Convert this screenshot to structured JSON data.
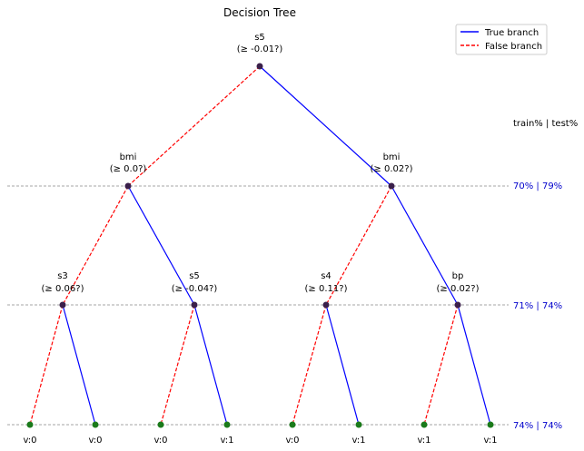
{
  "title": "Decision Tree",
  "legend": {
    "true_label": "True branch",
    "false_label": "False branch",
    "true_color": "#0000ff",
    "false_color": "#ff0000"
  },
  "accuracy_header": "train% | test%",
  "levels": [
    {
      "depth": 1,
      "accuracy": "70% | 79%"
    },
    {
      "depth": 2,
      "accuracy": "71% | 74%"
    },
    {
      "depth": 3,
      "accuracy": "74% | 74%"
    }
  ],
  "nodes": [
    {
      "id": "n0",
      "feature": "s5",
      "condition": "(≥ -0.01?)"
    },
    {
      "id": "n1",
      "feature": "bmi",
      "condition": "(≥ 0.0?)"
    },
    {
      "id": "n2",
      "feature": "bmi",
      "condition": "(≥ 0.02?)"
    },
    {
      "id": "n3",
      "feature": "s3",
      "condition": "(≥ 0.06?)"
    },
    {
      "id": "n4",
      "feature": "s5",
      "condition": "(≥ -0.04?)"
    },
    {
      "id": "n5",
      "feature": "s4",
      "condition": "(≥ 0.11?)"
    },
    {
      "id": "n6",
      "feature": "bp",
      "condition": "(≥ 0.02?)"
    }
  ],
  "leaves": [
    "v:0",
    "v:0",
    "v:0",
    "v:1",
    "v:0",
    "v:1",
    "v:1",
    "v:1"
  ],
  "node_color": "#3a1f4a",
  "leaf_color": "#1a7a1a"
}
